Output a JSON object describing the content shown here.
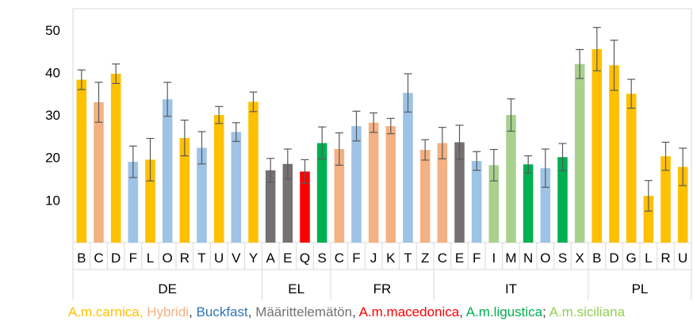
{
  "chart_data": {
    "type": "bar",
    "y_ticks": [
      10,
      20,
      30,
      40,
      50
    ],
    "ylim": [
      0,
      55
    ],
    "grid": false,
    "groups": [
      {
        "name": "DE",
        "categories": [
          "B",
          "C",
          "D",
          "F",
          "L",
          "O",
          "R",
          "T",
          "U",
          "V",
          "Y"
        ]
      },
      {
        "name": "EL",
        "categories": [
          "A",
          "E",
          "Q",
          "S"
        ]
      },
      {
        "name": "FR",
        "categories": [
          "C",
          "F",
          "J",
          "K",
          "T",
          "Z"
        ]
      },
      {
        "name": "IT",
        "categories": [
          "C",
          "E",
          "F",
          "I",
          "M",
          "N",
          "O",
          "S",
          "X"
        ]
      },
      {
        "name": "PL",
        "categories": [
          "B",
          "D",
          "G",
          "L",
          "R",
          "U"
        ]
      }
    ],
    "bars": [
      {
        "group": "DE",
        "label": "B",
        "value": 38.3,
        "err": 2.3,
        "type": "carnica"
      },
      {
        "group": "DE",
        "label": "C",
        "value": 33.0,
        "err": 4.7,
        "type": "hybridi"
      },
      {
        "group": "DE",
        "label": "D",
        "value": 39.7,
        "err": 2.3,
        "type": "carnica"
      },
      {
        "group": "DE",
        "label": "F",
        "value": 19.0,
        "err": 3.7,
        "type": "buckfast"
      },
      {
        "group": "DE",
        "label": "L",
        "value": 19.5,
        "err": 5.0,
        "type": "carnica"
      },
      {
        "group": "DE",
        "label": "O",
        "value": 33.7,
        "err": 4.0,
        "type": "buckfast"
      },
      {
        "group": "DE",
        "label": "R",
        "value": 24.6,
        "err": 4.2,
        "type": "carnica"
      },
      {
        "group": "DE",
        "label": "T",
        "value": 22.3,
        "err": 3.8,
        "type": "buckfast"
      },
      {
        "group": "DE",
        "label": "U",
        "value": 30.0,
        "err": 2.0,
        "type": "carnica"
      },
      {
        "group": "DE",
        "label": "V",
        "value": 26.0,
        "err": 2.2,
        "type": "buckfast"
      },
      {
        "group": "DE",
        "label": "Y",
        "value": 33.1,
        "err": 2.3,
        "type": "carnica"
      },
      {
        "group": "EL",
        "label": "A",
        "value": 17.0,
        "err": 2.8,
        "type": "unknown"
      },
      {
        "group": "EL",
        "label": "E",
        "value": 18.5,
        "err": 3.5,
        "type": "unknown"
      },
      {
        "group": "EL",
        "label": "Q",
        "value": 16.7,
        "err": 2.8,
        "type": "macedonica"
      },
      {
        "group": "EL",
        "label": "S",
        "value": 23.4,
        "err": 3.8,
        "type": "ligustica"
      },
      {
        "group": "FR",
        "label": "C",
        "value": 22.0,
        "err": 3.8,
        "type": "hybridi"
      },
      {
        "group": "FR",
        "label": "F",
        "value": 27.4,
        "err": 3.5,
        "type": "buckfast"
      },
      {
        "group": "FR",
        "label": "J",
        "value": 28.2,
        "err": 2.3,
        "type": "hybridi"
      },
      {
        "group": "FR",
        "label": "K",
        "value": 27.4,
        "err": 1.8,
        "type": "hybridi"
      },
      {
        "group": "FR",
        "label": "T",
        "value": 35.2,
        "err": 4.5,
        "type": "buckfast"
      },
      {
        "group": "FR",
        "label": "Z",
        "value": 21.8,
        "err": 2.4,
        "type": "hybridi"
      },
      {
        "group": "IT",
        "label": "C",
        "value": 23.4,
        "err": 3.7,
        "type": "hybridi"
      },
      {
        "group": "IT",
        "label": "E",
        "value": 23.6,
        "err": 4.0,
        "type": "unknown"
      },
      {
        "group": "IT",
        "label": "F",
        "value": 19.2,
        "err": 2.2,
        "type": "buckfast"
      },
      {
        "group": "IT",
        "label": "I",
        "value": 18.2,
        "err": 3.7,
        "type": "siciliana"
      },
      {
        "group": "IT",
        "label": "M",
        "value": 30.0,
        "err": 3.8,
        "type": "siciliana"
      },
      {
        "group": "IT",
        "label": "N",
        "value": 18.4,
        "err": 2.0,
        "type": "ligustica"
      },
      {
        "group": "IT",
        "label": "O",
        "value": 17.5,
        "err": 4.5,
        "type": "buckfast"
      },
      {
        "group": "IT",
        "label": "S",
        "value": 20.1,
        "err": 3.2,
        "type": "ligustica"
      },
      {
        "group": "IT",
        "label": "X",
        "value": 42.0,
        "err": 3.4,
        "type": "siciliana"
      },
      {
        "group": "PL",
        "label": "B",
        "value": 45.5,
        "err": 5.1,
        "type": "carnica"
      },
      {
        "group": "PL",
        "label": "D",
        "value": 41.7,
        "err": 5.9,
        "type": "carnica"
      },
      {
        "group": "PL",
        "label": "G",
        "value": 35.0,
        "err": 3.4,
        "type": "carnica"
      },
      {
        "group": "PL",
        "label": "L",
        "value": 11.0,
        "err": 3.6,
        "type": "carnica"
      },
      {
        "group": "PL",
        "label": "R",
        "value": 20.3,
        "err": 3.3,
        "type": "carnica"
      },
      {
        "group": "PL",
        "label": "U",
        "value": 17.8,
        "err": 4.4,
        "type": "carnica"
      }
    ],
    "colors": {
      "carnica": "#ffc000",
      "hybridi": "#f4b183",
      "buckfast": "#9dc3e6",
      "unknown": "#767171",
      "macedonica": "#ff0000",
      "ligustica": "#00b050",
      "siciliana": "#a9d18e"
    },
    "legend": {
      "carnica": "A.m.carnica,",
      "hybridi": "Hybridi",
      "buckfast": "Buckfast",
      "unknown": "Määrittelemätön",
      "macedonica": "A.m.macedonica",
      "ligustica": "A.m.ligustica",
      "siciliana": "A.m.siciliana"
    }
  }
}
